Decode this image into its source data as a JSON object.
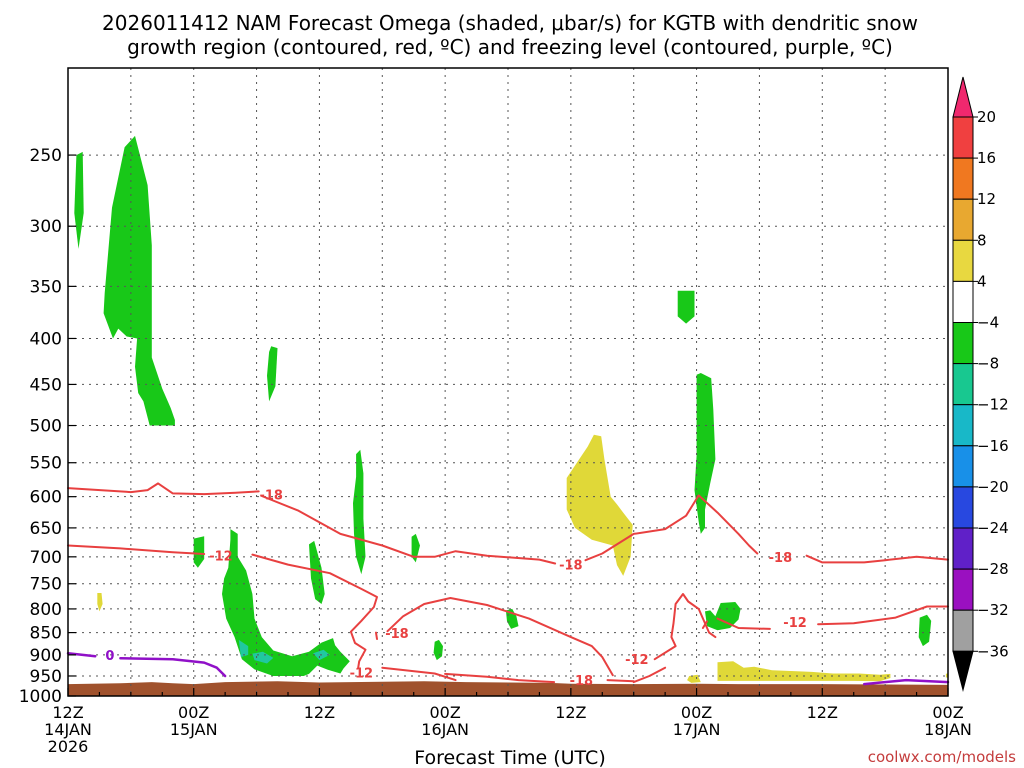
{
  "chart_data": {
    "type": "heatmap",
    "title_line1": "2026011412 NAM Forecast Omega (shaded, μbar/s) for KGTB with dendritic snow",
    "title_line2": "growth region (contoured, red, ºC) and freezing level (contoured, purple, ºC)",
    "xlabel": "Forecast Time (UTC)",
    "credit": "coolwx.com/models",
    "y_ticks": [
      250,
      300,
      350,
      400,
      450,
      500,
      550,
      600,
      650,
      700,
      750,
      800,
      850,
      900,
      950,
      1000
    ],
    "y_range": [
      1000,
      200
    ],
    "y_scale": "log-pressure",
    "x_range_hours": [
      0,
      84
    ],
    "x_ticks": [
      {
        "hour": 0,
        "line1": "12Z",
        "line2": "14JAN",
        "line3": "2026"
      },
      {
        "hour": 12,
        "line1": "00Z",
        "line2": "15JAN",
        "line3": ""
      },
      {
        "hour": 24,
        "line1": "12Z",
        "line2": "",
        "line3": ""
      },
      {
        "hour": 36,
        "line1": "00Z",
        "line2": "16JAN",
        "line3": ""
      },
      {
        "hour": 48,
        "line1": "12Z",
        "line2": "",
        "line3": ""
      },
      {
        "hour": 60,
        "line1": "00Z",
        "line2": "17JAN",
        "line3": ""
      },
      {
        "hour": 72,
        "line1": "12Z",
        "line2": "",
        "line3": ""
      },
      {
        "hour": 84,
        "line1": "00Z",
        "line2": "18JAN",
        "line3": ""
      }
    ],
    "grid": true,
    "colorbar": {
      "placement": "right",
      "labels": [
        "20",
        "16",
        "12",
        "8",
        "4",
        "−4",
        "−8",
        "−12",
        "−16",
        "−20",
        "−24",
        "−28",
        "−32",
        "−36"
      ],
      "colors": [
        "#f0286e",
        "#f04040",
        "#f07820",
        "#e8a830",
        "#e8d840",
        "#ffffff",
        "#18c818",
        "#18c890",
        "#18b8c8",
        "#1890e8",
        "#2848e0",
        "#6020c8",
        "#9a10c0",
        "#a0a0a0",
        "#000000"
      ]
    },
    "colors": {
      "green": "#18c818",
      "teal": "#20c8a0",
      "yellow": "#e0d838",
      "red_contour": "#e84040",
      "purple_contour": "#9010c8",
      "ground": "#a0522d"
    },
    "contour_labels": [
      {
        "text": "-18",
        "hour": 19.4,
        "p": 597
      },
      {
        "text": "-12",
        "hour": 14.6,
        "p": 698
      },
      {
        "text": "-18",
        "hour": 31.4,
        "p": 851
      },
      {
        "text": "-12",
        "hour": 28.0,
        "p": 941
      },
      {
        "text": "-18",
        "hour": 48.0,
        "p": 714
      },
      {
        "text": "-18",
        "hour": 49.0,
        "p": 960
      },
      {
        "text": "-12",
        "hour": 54.3,
        "p": 910
      },
      {
        "text": "-18",
        "hour": 68.0,
        "p": 700
      },
      {
        "text": "-12",
        "hour": 69.4,
        "p": 827
      },
      {
        "text": "0",
        "hour": 4.0,
        "p": 900
      }
    ],
    "red_contours": [
      [
        [
          0,
          587
        ],
        [
          6,
          593
        ],
        [
          7.6,
          590
        ],
        [
          8.6,
          580
        ],
        [
          10,
          595
        ],
        [
          13,
          596
        ],
        [
          16,
          594
        ],
        [
          18.2,
          592
        ]
      ],
      [
        [
          18.5,
          599
        ],
        [
          22,
          622
        ],
        [
          26,
          660
        ],
        [
          30,
          680
        ],
        [
          33,
          700
        ],
        [
          35,
          700
        ],
        [
          37,
          690
        ],
        [
          40,
          698
        ],
        [
          45,
          705
        ],
        [
          46.5,
          712
        ]
      ],
      [
        [
          49.4,
          706
        ],
        [
          51,
          694
        ],
        [
          54,
          660
        ],
        [
          57,
          652
        ],
        [
          59,
          630
        ],
        [
          60.2,
          598
        ],
        [
          62,
          625
        ],
        [
          64,
          660
        ],
        [
          65,
          680
        ],
        [
          65.8,
          694
        ]
      ],
      [
        [
          70.5,
          698
        ],
        [
          72,
          710
        ],
        [
          76,
          710
        ],
        [
          78,
          706
        ],
        [
          81,
          700
        ],
        [
          84,
          705
        ]
      ],
      [
        [
          0,
          680
        ],
        [
          5,
          685
        ],
        [
          10,
          692
        ],
        [
          13,
          695
        ]
      ],
      [
        [
          17.6,
          696
        ],
        [
          21,
          714
        ],
        [
          25,
          730
        ],
        [
          28,
          760
        ],
        [
          29.5,
          776
        ],
        [
          29.2,
          796
        ],
        [
          28,
          825
        ],
        [
          27,
          848
        ],
        [
          27.4,
          873
        ],
        [
          28.4,
          888
        ],
        [
          27.8,
          915
        ],
        [
          27.7,
          930
        ]
      ],
      [
        [
          30,
          930
        ],
        [
          35,
          944
        ],
        [
          37,
          960
        ]
      ],
      [
        [
          30.5,
          847
        ],
        [
          32,
          815
        ],
        [
          34,
          790
        ],
        [
          36.5,
          778
        ],
        [
          40,
          792
        ],
        [
          44,
          820
        ],
        [
          48,
          860
        ],
        [
          50,
          880
        ],
        [
          51,
          905
        ],
        [
          52,
          948
        ]
      ],
      [
        [
          29.5,
          864
        ],
        [
          29.4,
          850
        ]
      ],
      [
        [
          36,
          945
        ],
        [
          40,
          952
        ],
        [
          43,
          960
        ],
        [
          46.4,
          965
        ]
      ],
      [
        [
          51.5,
          960
        ],
        [
          54,
          963
        ]
      ],
      [
        [
          54,
          965
        ],
        [
          55.5,
          950
        ],
        [
          57,
          930
        ]
      ],
      [
        [
          56,
          910
        ],
        [
          58,
          880
        ],
        [
          57.6,
          860
        ],
        [
          57.8,
          830
        ],
        [
          58,
          790
        ],
        [
          58.7,
          770
        ],
        [
          59.2,
          785
        ],
        [
          60.2,
          800
        ],
        [
          61.2,
          850
        ],
        [
          61.8,
          860
        ]
      ],
      [
        [
          60.6,
          840
        ],
        [
          61,
          826
        ]
      ],
      [
        [
          62,
          820
        ],
        [
          64,
          840
        ],
        [
          67,
          842
        ]
      ],
      [
        [
          71.6,
          832
        ],
        [
          75,
          830
        ],
        [
          79,
          818
        ],
        [
          82,
          795
        ],
        [
          84,
          795
        ]
      ]
    ],
    "purple_contours": [
      [
        [
          0,
          896
        ],
        [
          2.6,
          903
        ]
      ],
      [
        [
          5,
          908
        ],
        [
          10,
          910
        ],
        [
          13,
          918
        ],
        [
          14.2,
          930
        ],
        [
          15,
          950
        ]
      ],
      [
        [
          76,
          970
        ],
        [
          80,
          960
        ],
        [
          84,
          965
        ]
      ]
    ],
    "green_regions": [
      [
        [
          0.8,
          250
        ],
        [
          1.4,
          248
        ],
        [
          1.5,
          290
        ],
        [
          1.0,
          318
        ],
        [
          0.6,
          290
        ]
      ],
      [
        [
          4.2,
          286
        ],
        [
          5.4,
          245
        ],
        [
          6.4,
          238
        ],
        [
          7.6,
          270
        ],
        [
          8.0,
          315
        ],
        [
          8.0,
          420
        ],
        [
          9.0,
          455
        ],
        [
          9.8,
          478
        ],
        [
          10.2,
          493
        ],
        [
          10.2,
          500
        ],
        [
          7.8,
          500
        ],
        [
          7.2,
          470
        ],
        [
          6.7,
          460
        ],
        [
          6.4,
          430
        ],
        [
          6.6,
          400
        ],
        [
          5.6,
          398
        ],
        [
          4.8,
          390
        ],
        [
          4.3,
          400
        ],
        [
          3.4,
          375
        ],
        [
          3.5,
          356
        ],
        [
          4.2,
          286
        ]
      ],
      [
        [
          19.2,
          414
        ],
        [
          19.4,
          408
        ],
        [
          20.0,
          410
        ],
        [
          19.8,
          452
        ],
        [
          19.2,
          470
        ],
        [
          19.0,
          440
        ]
      ],
      [
        [
          27.5,
          538
        ],
        [
          27.9,
          532
        ],
        [
          28.2,
          565
        ],
        [
          28.2,
          635
        ],
        [
          28.4,
          700
        ],
        [
          28.0,
          732
        ],
        [
          27.5,
          700
        ],
        [
          27.3,
          660
        ],
        [
          27.2,
          610
        ],
        [
          27.5,
          570
        ]
      ],
      [
        [
          32.8,
          665
        ],
        [
          33.2,
          660
        ],
        [
          33.6,
          680
        ],
        [
          33.2,
          710
        ],
        [
          32.8,
          700
        ]
      ],
      [
        [
          23.0,
          678
        ],
        [
          23.5,
          672
        ],
        [
          24.2,
          720
        ],
        [
          24.5,
          770
        ],
        [
          24.2,
          790
        ],
        [
          23.6,
          780
        ],
        [
          23.2,
          740
        ]
      ],
      [
        [
          12.0,
          668
        ],
        [
          13.0,
          664
        ],
        [
          13.0,
          704
        ],
        [
          12.4,
          720
        ],
        [
          12.0,
          710
        ]
      ],
      [
        [
          15.5,
          652
        ],
        [
          16.2,
          660
        ],
        [
          16.2,
          700
        ],
        [
          17.0,
          725
        ],
        [
          17.6,
          770
        ],
        [
          17.8,
          820
        ],
        [
          18.5,
          860
        ],
        [
          19.6,
          890
        ],
        [
          21.4,
          903
        ],
        [
          23.0,
          893
        ],
        [
          24.2,
          872
        ],
        [
          25.3,
          862
        ],
        [
          25.5,
          878
        ],
        [
          26.0,
          893
        ],
        [
          26.9,
          915
        ],
        [
          26.3,
          932
        ],
        [
          26.0,
          944
        ],
        [
          24.8,
          935
        ],
        [
          23.8,
          925
        ],
        [
          23.0,
          945
        ],
        [
          22.5,
          950
        ],
        [
          19.6,
          950
        ],
        [
          17.8,
          934
        ],
        [
          16.6,
          910
        ],
        [
          15.9,
          860
        ],
        [
          15.1,
          820
        ],
        [
          14.7,
          770
        ],
        [
          14.9,
          740
        ],
        [
          15.3,
          720
        ],
        [
          15.5,
          670
        ]
      ],
      [
        [
          35.0,
          870
        ],
        [
          35.4,
          866
        ],
        [
          35.8,
          880
        ],
        [
          35.7,
          903
        ],
        [
          35.2,
          912
        ],
        [
          34.9,
          895
        ]
      ],
      [
        [
          41.8,
          803
        ],
        [
          42.4,
          800
        ],
        [
          42.8,
          815
        ],
        [
          43.0,
          836
        ],
        [
          42.3,
          842
        ],
        [
          41.9,
          826
        ]
      ],
      [
        [
          58.2,
          354
        ],
        [
          59.8,
          354
        ],
        [
          59.8,
          378
        ],
        [
          59.0,
          385
        ],
        [
          58.2,
          378
        ]
      ],
      [
        [
          60.0,
          439
        ],
        [
          60.4,
          437
        ],
        [
          61.4,
          443
        ],
        [
          61.6,
          480
        ],
        [
          61.8,
          545
        ],
        [
          61.3,
          580
        ],
        [
          60.8,
          620
        ],
        [
          60.8,
          650
        ],
        [
          60.4,
          660
        ],
        [
          60.2,
          640
        ],
        [
          59.8,
          590
        ],
        [
          60.0,
          540
        ],
        [
          60.0,
          470
        ]
      ],
      [
        [
          60.8,
          805
        ],
        [
          61.3,
          803
        ],
        [
          61.8,
          815
        ],
        [
          62.3,
          788
        ],
        [
          63.7,
          786
        ],
        [
          64.2,
          800
        ],
        [
          64.0,
          822
        ],
        [
          63.2,
          840
        ],
        [
          62.0,
          845
        ],
        [
          61.0,
          836
        ]
      ],
      [
        [
          81.3,
          818
        ],
        [
          82.0,
          812
        ],
        [
          82.4,
          825
        ],
        [
          82.2,
          870
        ],
        [
          81.6,
          880
        ],
        [
          81.2,
          860
        ]
      ]
    ],
    "teal_regions": [
      [
        [
          16.3,
          866
        ],
        [
          17.2,
          880
        ],
        [
          17.2,
          900
        ],
        [
          16.5,
          905
        ]
      ],
      [
        [
          17.6,
          897
        ],
        [
          18.6,
          893
        ],
        [
          19.6,
          907
        ],
        [
          19.0,
          920
        ],
        [
          17.8,
          912
        ]
      ],
      [
        [
          23.4,
          896
        ],
        [
          24.4,
          888
        ],
        [
          25.0,
          900
        ],
        [
          24.0,
          912
        ]
      ]
    ],
    "yellow_regions": [
      [
        [
          2.8,
          768
        ],
        [
          3.2,
          768
        ],
        [
          3.3,
          790
        ],
        [
          3.0,
          805
        ],
        [
          2.8,
          790
        ]
      ],
      [
        [
          47.6,
          572
        ],
        [
          48.8,
          545
        ],
        [
          49.6,
          528
        ],
        [
          50.2,
          512
        ],
        [
          50.9,
          514
        ],
        [
          51.2,
          545
        ],
        [
          51.8,
          600
        ],
        [
          52.4,
          612
        ],
        [
          53.0,
          625
        ],
        [
          53.9,
          645
        ],
        [
          53.7,
          700
        ],
        [
          53.0,
          735
        ],
        [
          52.4,
          715
        ],
        [
          52.0,
          680
        ],
        [
          50.0,
          670
        ],
        [
          48.4,
          650
        ],
        [
          47.6,
          620
        ]
      ],
      [
        [
          59.3,
          950
        ],
        [
          60.1,
          947
        ],
        [
          60.4,
          965
        ],
        [
          59.5,
          967
        ],
        [
          59.1,
          960
        ]
      ],
      [
        [
          62.0,
          917
        ],
        [
          63.5,
          915
        ],
        [
          64.5,
          930
        ],
        [
          65.5,
          928
        ],
        [
          67.2,
          936
        ],
        [
          69,
          938
        ],
        [
          71,
          940
        ],
        [
          73,
          944
        ],
        [
          75.5,
          944
        ],
        [
          77.5,
          947
        ],
        [
          78.5,
          945
        ],
        [
          78.5,
          955
        ],
        [
          77.5,
          963
        ],
        [
          75,
          962
        ],
        [
          72,
          962
        ],
        [
          68,
          962
        ],
        [
          65,
          962
        ],
        [
          62,
          962
        ]
      ],
      [
        [
          83.8,
          945
        ],
        [
          84,
          943
        ],
        [
          84,
          955
        ],
        [
          83.8,
          953
        ]
      ]
    ],
    "ground": [
      [
        0,
        970
      ],
      [
        5,
        968
      ],
      [
        8,
        965
      ],
      [
        10,
        968
      ],
      [
        12,
        970
      ],
      [
        15,
        965
      ],
      [
        20,
        963
      ],
      [
        24,
        966
      ],
      [
        30,
        964
      ],
      [
        34,
        963
      ],
      [
        38,
        965
      ],
      [
        46,
        967
      ],
      [
        48,
        969
      ],
      [
        54,
        970
      ],
      [
        60,
        969
      ],
      [
        64,
        970
      ],
      [
        72,
        970
      ],
      [
        84,
        972
      ]
    ]
  }
}
